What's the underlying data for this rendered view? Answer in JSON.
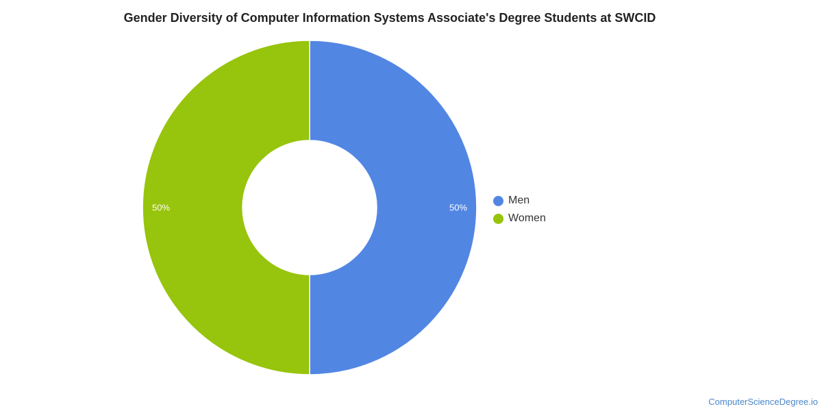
{
  "chart_data": {
    "type": "pie",
    "title": "Gender Diversity of Computer Information Systems Associate's Degree Students at SWCID",
    "categories": [
      "Men",
      "Women"
    ],
    "values": [
      50,
      50
    ],
    "value_labels": [
      "50%",
      "50%"
    ],
    "colors": [
      "#5286e3",
      "#97c40c"
    ],
    "donut": true,
    "legend_position": "right"
  },
  "legend": {
    "items": [
      {
        "label": "Men",
        "color": "#5286e3"
      },
      {
        "label": "Women",
        "color": "#97c40c"
      }
    ]
  },
  "footer": {
    "source": "ComputerScienceDegree.io"
  }
}
